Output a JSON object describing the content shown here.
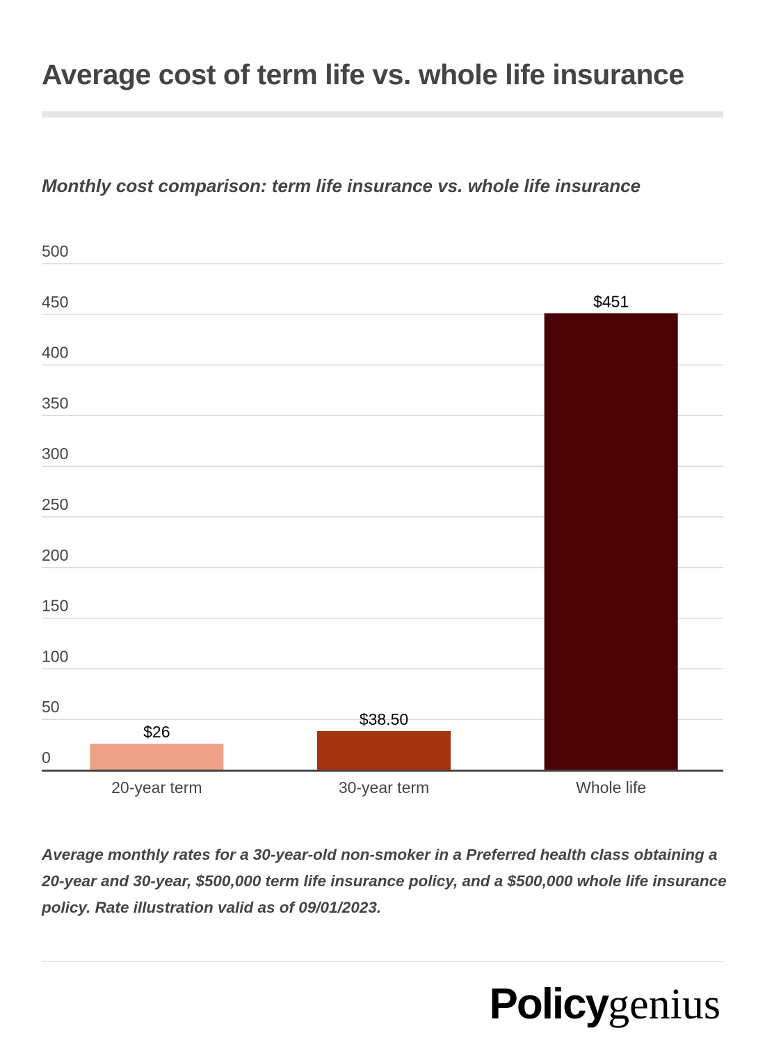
{
  "title": "Average cost of term life vs. whole life insurance",
  "chart_data": {
    "type": "bar",
    "title": "Average cost of term life vs. whole life insurance",
    "subtitle": "Monthly cost comparison: term life insurance vs. whole life insurance",
    "categories": [
      "20-year term",
      "30-year term",
      "Whole life"
    ],
    "values": [
      26,
      38.5,
      451
    ],
    "data_labels": [
      "$26",
      "$38.50",
      "$451"
    ],
    "colors": [
      "#eca288",
      "#a33410",
      "#4a0205"
    ],
    "ylim": [
      0,
      500
    ],
    "yticks": [
      0,
      50,
      100,
      150,
      200,
      250,
      300,
      350,
      400,
      450,
      500
    ],
    "xlabel": "",
    "ylabel": "",
    "grid": true
  },
  "footnote": "Average monthly rates for a 30-year-old non-smoker in a Preferred health class obtaining a 20-year and 30-year, $500,000 term life insurance policy, and a $500,000 whole life insurance policy. Rate illustration valid as of 09/01/2023.",
  "logo": {
    "part1": "Policy",
    "part2": "genius"
  }
}
